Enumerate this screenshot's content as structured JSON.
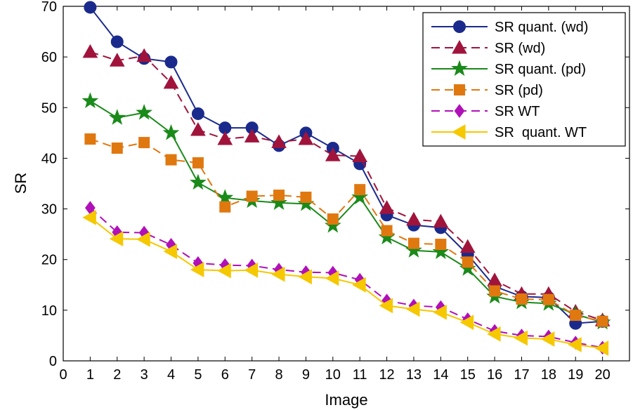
{
  "chart_data": {
    "type": "line",
    "xlabel": "Image",
    "ylabel": "SR",
    "xlim": [
      0,
      21
    ],
    "ylim": [
      0,
      70
    ],
    "xticks": [
      0,
      1,
      2,
      3,
      4,
      5,
      6,
      7,
      8,
      9,
      10,
      11,
      12,
      13,
      14,
      15,
      16,
      17,
      18,
      19,
      20
    ],
    "yticks": [
      0,
      10,
      20,
      30,
      40,
      50,
      60,
      70
    ],
    "grid": false,
    "legend_position": "top-right",
    "x": [
      1,
      2,
      3,
      4,
      5,
      6,
      7,
      8,
      9,
      10,
      11,
      12,
      13,
      14,
      15,
      16,
      17,
      18,
      19,
      20
    ],
    "series": [
      {
        "name": "SR quant. (wd)",
        "color": "#1a2a8c",
        "marker": "circle",
        "dash": "solid",
        "values": [
          69.8,
          63.0,
          59.7,
          59.0,
          48.8,
          46.0,
          46.0,
          42.5,
          45.0,
          42.0,
          38.9,
          28.8,
          26.8,
          26.3,
          21.0,
          14.7,
          12.7,
          12.5,
          7.4,
          7.8
        ]
      },
      {
        "name": "SR (wd)",
        "color": "#a0143c",
        "marker": "triangle",
        "dash": "dashed",
        "values": [
          61.0,
          59.3,
          60.2,
          54.9,
          45.6,
          43.8,
          44.3,
          43.2,
          43.8,
          40.6,
          40.4,
          30.2,
          27.9,
          27.5,
          22.5,
          15.9,
          13.2,
          13.2,
          9.7,
          8.0
        ]
      },
      {
        "name": "SR quant. (pd)",
        "color": "#1a8a1a",
        "marker": "star",
        "dash": "solid",
        "values": [
          51.3,
          48.0,
          49.0,
          45.0,
          35.2,
          32.2,
          31.6,
          31.2,
          31.0,
          26.7,
          32.3,
          24.4,
          21.8,
          21.5,
          18.2,
          12.7,
          11.6,
          11.3,
          9.2,
          7.6
        ]
      },
      {
        "name": "SR (pd)",
        "color": "#e07810",
        "marker": "square",
        "dash": "dashed",
        "values": [
          43.8,
          42.0,
          43.1,
          39.7,
          39.1,
          30.4,
          32.5,
          32.7,
          32.3,
          28.0,
          33.8,
          25.7,
          23.2,
          23.0,
          19.5,
          13.8,
          12.2,
          12.1,
          9.0,
          7.8
        ]
      },
      {
        "name": "SR WT",
        "color": "#b010b8",
        "marker": "diamond",
        "dash": "dashed",
        "values": [
          30.2,
          25.4,
          25.3,
          22.9,
          19.3,
          18.9,
          18.8,
          18.0,
          17.5,
          17.4,
          16.0,
          11.9,
          10.9,
          10.6,
          8.2,
          5.9,
          5.0,
          4.8,
          3.6,
          2.6
        ]
      },
      {
        "name": "SR  quant. WT",
        "color": "#f5c800",
        "marker": "triangle-left",
        "dash": "solid",
        "values": [
          28.3,
          24.1,
          24.0,
          21.6,
          18.0,
          17.8,
          17.9,
          17.1,
          16.6,
          16.3,
          15.0,
          10.9,
          10.2,
          9.6,
          7.6,
          5.3,
          4.5,
          4.3,
          3.2,
          2.5
        ]
      }
    ]
  }
}
